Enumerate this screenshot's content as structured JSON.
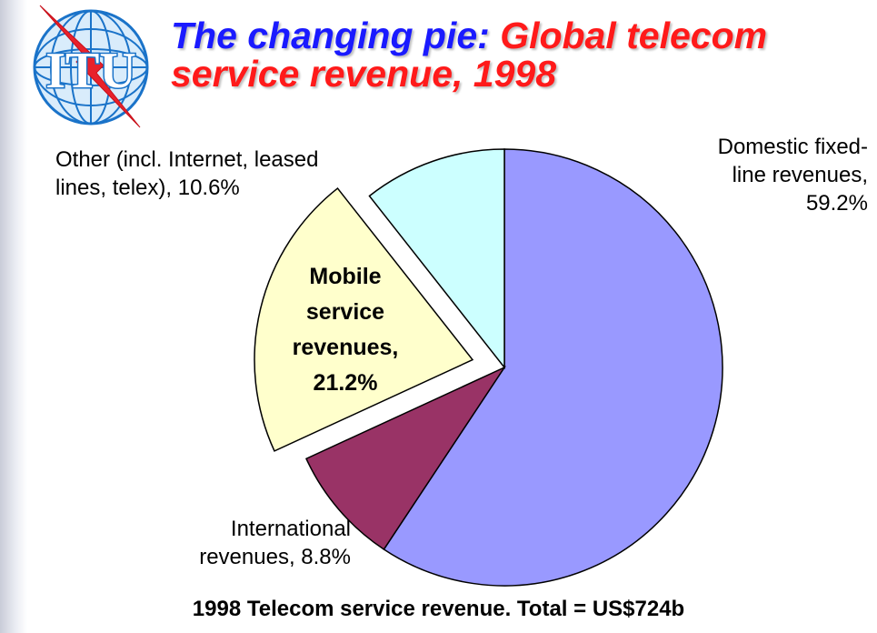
{
  "logo": {
    "text": "ITU",
    "icon": "itu-globe-logo"
  },
  "title": {
    "part1": "The changing pie: ",
    "part2": "Global telecom",
    "line2": "service revenue, 1998"
  },
  "chart_data": {
    "type": "pie",
    "title": "The changing pie: Global telecom service revenue, 1998",
    "caption": "1998 Telecom service revenue. Total = US$724b",
    "slices": [
      {
        "label_lines": [
          "Domestic fixed-",
          "line revenues,",
          "59.2%"
        ],
        "category": "Domestic fixed-line revenues",
        "value": 59.2,
        "color": "#9999ff",
        "exploded": false
      },
      {
        "label_lines": [
          "International",
          "revenues, 8.8%"
        ],
        "category": "International revenues",
        "value": 8.8,
        "color": "#993366",
        "exploded": false
      },
      {
        "label_lines": [
          "Mobile",
          "service",
          "revenues,",
          "21.2%"
        ],
        "category": "Mobile service revenues",
        "value": 21.2,
        "color": "#ffffcc",
        "exploded": true
      },
      {
        "label_lines": [
          "Other (incl. Internet, leased",
          "lines, telex), 10.6%"
        ],
        "category": "Other (incl. Internet, leased lines, telex)",
        "value": 10.6,
        "color": "#ccffff",
        "exploded": false
      }
    ]
  }
}
